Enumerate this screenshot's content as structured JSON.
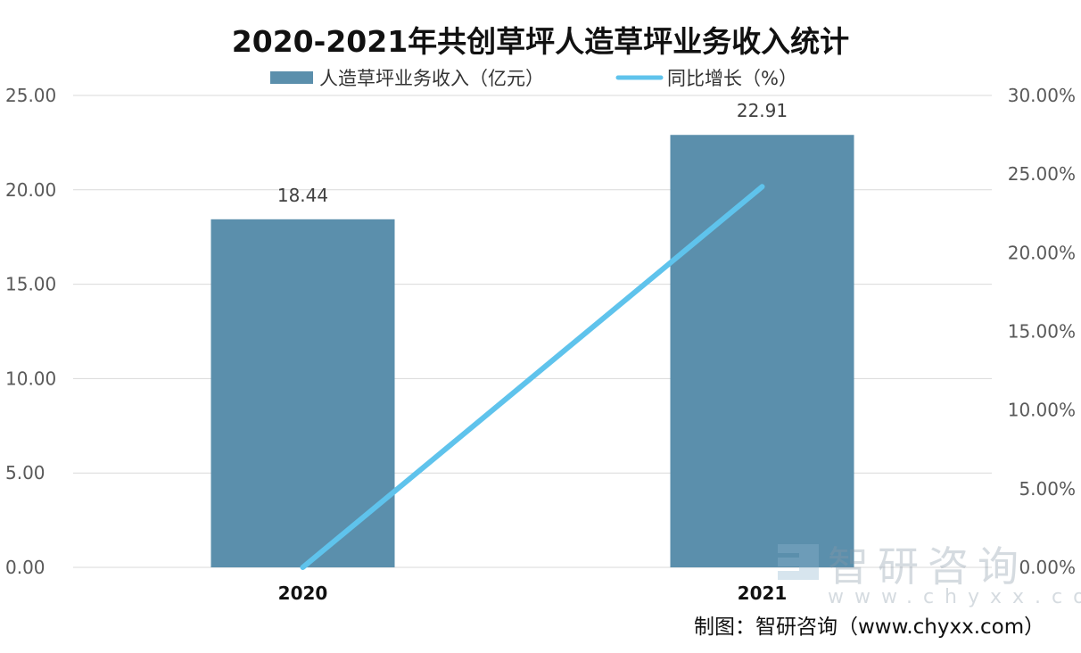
{
  "chart_data": {
    "type": "bar",
    "title": "2020-2021年共创草坪人造草坪业务收入统计",
    "categories": [
      "2020",
      "2021"
    ],
    "series": [
      {
        "name": "人造草坪业务收入（亿元）",
        "type": "bar",
        "axis": "left",
        "values": [
          18.44,
          22.91
        ],
        "data_labels": [
          "18.44",
          "22.91"
        ],
        "color": "#5b8fac"
      },
      {
        "name": "同比增长（%）",
        "type": "line",
        "axis": "right",
        "values": [
          0,
          24.2
        ],
        "color": "#5fc3ec"
      }
    ],
    "y_left": {
      "range": [
        0,
        25
      ],
      "ticks": [
        "0.00",
        "5.00",
        "10.00",
        "15.00",
        "20.00",
        "25.00"
      ]
    },
    "y_right": {
      "range": [
        0,
        30
      ],
      "ticks": [
        "0.00%",
        "5.00%",
        "10.00%",
        "15.00%",
        "20.00%",
        "25.00%",
        "30.00%"
      ]
    },
    "grid": true,
    "legend_position": "top-center"
  },
  "watermark": {
    "logo_text": "智研咨询",
    "logo_url_text": "www.chyxx.com"
  },
  "credit": "制图：智研咨询（www.chyxx.com）",
  "colors": {
    "bar": "#5b8fac",
    "line": "#5fc3ec",
    "grid": "#d9d9d9",
    "axis_text": "#595959",
    "title": "#111111"
  }
}
